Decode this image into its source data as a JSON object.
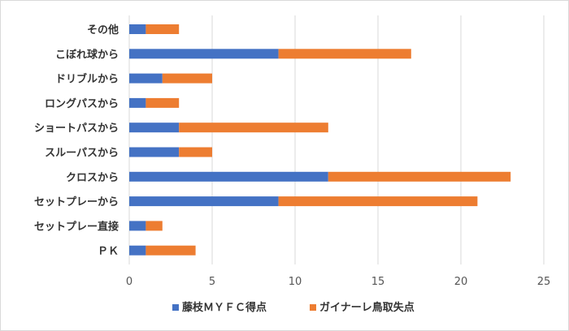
{
  "chart_data": {
    "type": "bar",
    "orientation": "horizontal",
    "stacked": true,
    "categories": [
      "その他",
      "こぼれ球から",
      "ドリブルから",
      "ロングパスから",
      "ショートパスから",
      "スルーパスから",
      "クロスから",
      "セットプレーから",
      "セットプレー直接",
      "ＰＫ"
    ],
    "series": [
      {
        "name": "藤枝ＭＹＦＣ得点",
        "color": "#4472c4",
        "values": [
          1,
          9,
          2,
          1,
          3,
          3,
          12,
          9,
          1,
          1
        ]
      },
      {
        "name": "ガイナーレ鳥取失点",
        "color": "#ed7d31",
        "values": [
          2,
          8,
          3,
          2,
          9,
          2,
          11,
          12,
          1,
          3
        ]
      }
    ],
    "title": "",
    "xlabel": "",
    "ylabel": "",
    "xlim": [
      0,
      25
    ],
    "xticks": [
      "0",
      "5",
      "10",
      "15",
      "20",
      "25"
    ],
    "grid": true,
    "legend_position": "bottom"
  }
}
